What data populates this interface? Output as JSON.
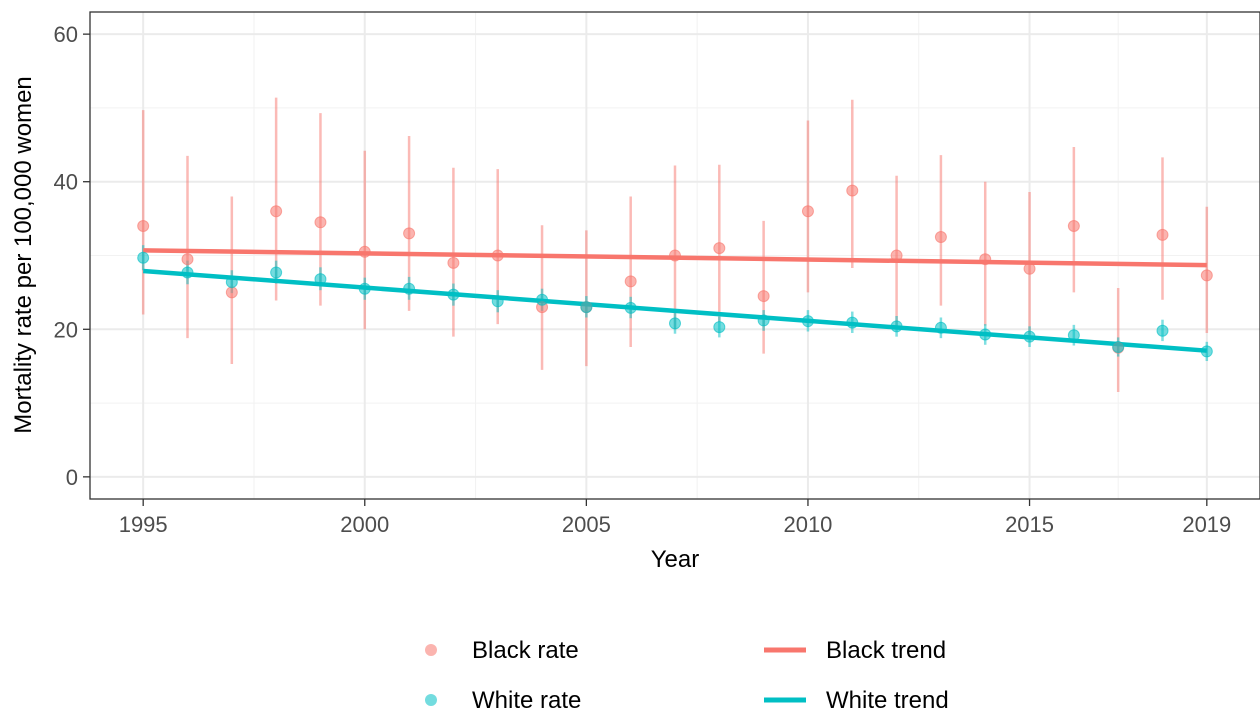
{
  "chart_data": {
    "type": "scatter",
    "title": "",
    "xlabel": "Year",
    "ylabel": "Mortality rate per 100,000 women",
    "xlim": [
      1993.8,
      2020.2
    ],
    "ylim": [
      -3,
      63
    ],
    "x_ticks": [
      1995,
      2000,
      2005,
      2010,
      2015,
      2019
    ],
    "y_ticks": [
      0,
      20,
      40,
      60
    ],
    "grid": true,
    "legend_position": "bottom",
    "colors": {
      "black": "#F8766D",
      "white": "#00BFC4"
    },
    "legend": {
      "black_rate": "Black rate",
      "white_rate": "White rate",
      "black_trend": "Black trend",
      "white_trend": "White trend"
    },
    "series": [
      {
        "name": "Black rate",
        "x": [
          1995,
          1996,
          1997,
          1998,
          1999,
          2000,
          2001,
          2002,
          2003,
          2004,
          2005,
          2006,
          2007,
          2008,
          2009,
          2010,
          2011,
          2012,
          2013,
          2014,
          2015,
          2016,
          2017,
          2018,
          2019
        ],
        "y": [
          34.0,
          29.5,
          25.0,
          36.0,
          34.5,
          30.5,
          33.0,
          29.0,
          30.0,
          23.0,
          23.0,
          26.5,
          30.0,
          31.0,
          24.5,
          36.0,
          38.8,
          30.0,
          32.5,
          29.5,
          28.2,
          34.0,
          17.5,
          32.8,
          27.3
        ],
        "lower": [
          22.0,
          18.8,
          15.3,
          23.9,
          23.2,
          20.0,
          22.5,
          19.0,
          20.7,
          14.5,
          15.0,
          17.6,
          20.0,
          21.0,
          16.7,
          25.0,
          28.3,
          20.5,
          23.2,
          20.5,
          19.3,
          25.0,
          11.5,
          24.0,
          19.5
        ],
        "upper": [
          49.7,
          43.5,
          38.0,
          51.4,
          49.3,
          44.2,
          46.2,
          41.9,
          41.7,
          34.1,
          33.4,
          38.0,
          42.2,
          42.3,
          34.7,
          48.3,
          51.1,
          40.8,
          43.6,
          40.0,
          38.6,
          44.7,
          25.6,
          43.3,
          36.6
        ]
      },
      {
        "name": "White rate",
        "x": [
          1995,
          1996,
          1997,
          1998,
          1999,
          2000,
          2001,
          2002,
          2003,
          2004,
          2005,
          2006,
          2007,
          2008,
          2009,
          2010,
          2011,
          2012,
          2013,
          2014,
          2015,
          2016,
          2017,
          2018,
          2019
        ],
        "y": [
          29.7,
          27.7,
          26.4,
          27.7,
          26.8,
          25.5,
          25.5,
          24.7,
          23.8,
          24.0,
          23.0,
          22.9,
          20.8,
          20.3,
          21.2,
          21.1,
          20.9,
          20.4,
          20.2,
          19.3,
          19.0,
          19.2,
          17.6,
          19.8,
          17.0
        ],
        "lower": [
          28.0,
          26.1,
          24.9,
          26.2,
          25.3,
          24.0,
          24.0,
          23.2,
          22.3,
          22.5,
          21.6,
          21.5,
          19.4,
          18.9,
          19.8,
          19.7,
          19.5,
          19.0,
          18.8,
          17.9,
          17.6,
          17.8,
          16.3,
          18.4,
          15.7
        ],
        "upper": [
          31.4,
          29.3,
          28.0,
          29.3,
          28.4,
          27.0,
          27.1,
          26.2,
          25.3,
          25.5,
          24.5,
          24.4,
          22.2,
          21.7,
          22.6,
          22.6,
          22.4,
          21.8,
          21.6,
          20.7,
          20.4,
          20.6,
          18.9,
          21.3,
          18.3
        ]
      },
      {
        "name": "Black trend",
        "x": [
          1995,
          2019
        ],
        "y": [
          30.7,
          28.7
        ]
      },
      {
        "name": "White trend",
        "x": [
          1995,
          2019
        ],
        "y": [
          27.9,
          17.1
        ]
      }
    ]
  }
}
